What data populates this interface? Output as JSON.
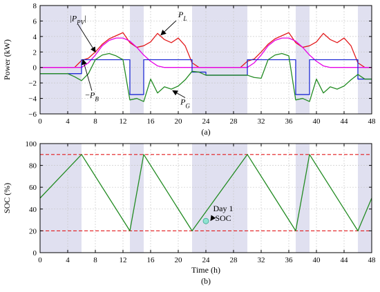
{
  "chart_data": [
    {
      "type": "line",
      "subplot": "top",
      "caption": "(a)",
      "xlabel": "",
      "ylabel": "Power (kW)",
      "xlim": [
        0,
        48
      ],
      "ylim": [
        -6,
        8
      ],
      "xticks": [
        0,
        4,
        8,
        12,
        16,
        20,
        24,
        28,
        32,
        36,
        40,
        44,
        48
      ],
      "yticks": [
        -6,
        -4,
        -2,
        0,
        2,
        4,
        6,
        8
      ],
      "grid": true,
      "shaded_intervals": [
        [
          0,
          6
        ],
        [
          13,
          15
        ],
        [
          22,
          30
        ],
        [
          37,
          39
        ],
        [
          46,
          48
        ]
      ],
      "series": [
        {
          "name": "P_L",
          "color": "#e31a1c",
          "points": [
            [
              0,
              0
            ],
            [
              5,
              0
            ],
            [
              6,
              0.9
            ],
            [
              7,
              1.2
            ],
            [
              8,
              2.0
            ],
            [
              9,
              3.0
            ],
            [
              10,
              3.7
            ],
            [
              11,
              4.1
            ],
            [
              12,
              4.5
            ],
            [
              13,
              3.2
            ],
            [
              14,
              2.6
            ],
            [
              15,
              2.8
            ],
            [
              16,
              3.3
            ],
            [
              17,
              4.4
            ],
            [
              18,
              3.6
            ],
            [
              19,
              3.2
            ],
            [
              20,
              3.8
            ],
            [
              21,
              2.8
            ],
            [
              22,
              0.6
            ],
            [
              23,
              0
            ],
            [
              29,
              0
            ],
            [
              30,
              0.8
            ],
            [
              31,
              1.1
            ],
            [
              32,
              2.0
            ],
            [
              33,
              3.0
            ],
            [
              34,
              3.7
            ],
            [
              35,
              4.1
            ],
            [
              36,
              4.5
            ],
            [
              37,
              3.2
            ],
            [
              38,
              2.6
            ],
            [
              39,
              2.8
            ],
            [
              40,
              3.3
            ],
            [
              41,
              4.4
            ],
            [
              42,
              3.6
            ],
            [
              43,
              3.2
            ],
            [
              44,
              3.8
            ],
            [
              45,
              2.8
            ],
            [
              46,
              0.6
            ],
            [
              47,
              0
            ],
            [
              48,
              0
            ]
          ]
        },
        {
          "name": "|P_PV|",
          "color": "#e600e6",
          "points": [
            [
              0,
              0
            ],
            [
              6,
              0
            ],
            [
              7,
              0.6
            ],
            [
              8,
              1.6
            ],
            [
              9,
              2.8
            ],
            [
              10,
              3.5
            ],
            [
              11,
              3.8
            ],
            [
              12,
              3.8
            ],
            [
              13,
              3.4
            ],
            [
              14,
              2.6
            ],
            [
              15,
              1.6
            ],
            [
              16,
              0.8
            ],
            [
              17,
              0.2
            ],
            [
              18,
              0
            ],
            [
              30,
              0
            ],
            [
              31,
              0.6
            ],
            [
              32,
              1.6
            ],
            [
              33,
              2.8
            ],
            [
              34,
              3.5
            ],
            [
              35,
              3.8
            ],
            [
              36,
              3.8
            ],
            [
              37,
              3.4
            ],
            [
              38,
              2.6
            ],
            [
              39,
              1.6
            ],
            [
              40,
              0.8
            ],
            [
              41,
              0.2
            ],
            [
              42,
              0
            ],
            [
              48,
              0
            ]
          ]
        },
        {
          "name": "-P_B",
          "color": "#1f2bd4",
          "points": [
            [
              0,
              -0.8
            ],
            [
              6,
              -0.8
            ],
            [
              6,
              1.0
            ],
            [
              13,
              1.0
            ],
            [
              13,
              -3.5
            ],
            [
              15,
              -3.5
            ],
            [
              15,
              1.0
            ],
            [
              22,
              1.0
            ],
            [
              22,
              -0.6
            ],
            [
              24,
              -0.6
            ],
            [
              24,
              -1.0
            ],
            [
              30,
              -1.0
            ],
            [
              30,
              1.0
            ],
            [
              37,
              1.0
            ],
            [
              37,
              -3.5
            ],
            [
              39,
              -3.5
            ],
            [
              39,
              1.0
            ],
            [
              46,
              1.0
            ],
            [
              46,
              -1.5
            ],
            [
              48,
              -1.5
            ]
          ]
        },
        {
          "name": "P_G",
          "color": "#228b22",
          "points": [
            [
              0,
              -0.8
            ],
            [
              4,
              -0.8
            ],
            [
              5,
              -1.2
            ],
            [
              6,
              -1.7
            ],
            [
              7,
              -0.8
            ],
            [
              8,
              1.0
            ],
            [
              9,
              1.6
            ],
            [
              10,
              1.8
            ],
            [
              11,
              1.5
            ],
            [
              12,
              1.0
            ],
            [
              13,
              -4.2
            ],
            [
              14,
              -4.0
            ],
            [
              15,
              -4.4
            ],
            [
              16,
              -1.5
            ],
            [
              17,
              -3.3
            ],
            [
              18,
              -2.5
            ],
            [
              19,
              -2.8
            ],
            [
              20,
              -2.4
            ],
            [
              21,
              -1.6
            ],
            [
              22,
              -0.5
            ],
            [
              23,
              -0.6
            ],
            [
              24,
              -1.0
            ],
            [
              30,
              -1.0
            ],
            [
              31,
              -1.3
            ],
            [
              32,
              -1.4
            ],
            [
              33,
              1.0
            ],
            [
              34,
              1.6
            ],
            [
              35,
              1.8
            ],
            [
              36,
              1.5
            ],
            [
              37,
              -4.2
            ],
            [
              38,
              -4.0
            ],
            [
              39,
              -4.4
            ],
            [
              40,
              -1.5
            ],
            [
              41,
              -3.3
            ],
            [
              42,
              -2.5
            ],
            [
              43,
              -2.8
            ],
            [
              44,
              -2.4
            ],
            [
              45,
              -1.6
            ],
            [
              46,
              -0.9
            ],
            [
              47,
              -1.5
            ],
            [
              48,
              -1.5
            ]
          ]
        }
      ],
      "annotations": [
        {
          "label": "|P_PV|",
          "x": 5.5,
          "y": 6.0,
          "arrow_to": [
            8.0,
            2.0
          ]
        },
        {
          "label": "P_L",
          "x": 20.0,
          "y": 6.5,
          "arrow_to": [
            17.5,
            4.2
          ]
        },
        {
          "label": "-P_B",
          "x": 7.5,
          "y": -3.9,
          "arrow_to": [
            6.2,
            1.0
          ]
        },
        {
          "label": "P_G",
          "x": 21.0,
          "y": -4.8,
          "arrow_to": [
            19.2,
            -3.0
          ]
        }
      ]
    },
    {
      "type": "line",
      "subplot": "bottom",
      "caption": "(b)",
      "xlabel": "Time (h)",
      "ylabel": "SOC (%)",
      "xlim": [
        0,
        48
      ],
      "ylim": [
        0,
        100
      ],
      "xticks": [
        0,
        4,
        8,
        12,
        16,
        20,
        24,
        28,
        32,
        36,
        40,
        44,
        48
      ],
      "yticks": [
        0,
        20,
        40,
        60,
        80,
        100
      ],
      "grid": true,
      "shaded_intervals": [
        [
          0,
          6
        ],
        [
          13,
          15
        ],
        [
          22,
          30
        ],
        [
          37,
          39
        ],
        [
          46,
          48
        ]
      ],
      "reference_lines": [
        {
          "y": 90,
          "color": "#e31a1c",
          "style": "dashed"
        },
        {
          "y": 20,
          "color": "#e31a1c",
          "style": "dashed"
        }
      ],
      "series": [
        {
          "name": "SOC",
          "color": "#228b22",
          "points": [
            [
              0,
              50
            ],
            [
              6,
              90
            ],
            [
              13,
              20
            ],
            [
              15,
              90
            ],
            [
              22,
              20
            ],
            [
              30,
              90
            ],
            [
              37,
              20
            ],
            [
              39,
              90
            ],
            [
              46,
              20
            ],
            [
              48,
              50
            ]
          ]
        }
      ],
      "marker": {
        "x": 24,
        "y": 29
      },
      "annotations": [
        {
          "label_line1": "Day 1",
          "label_line2": "SOC",
          "x": 26.5,
          "y": 38,
          "arrow_to": [
            24.2,
            29.5
          ]
        }
      ]
    }
  ]
}
